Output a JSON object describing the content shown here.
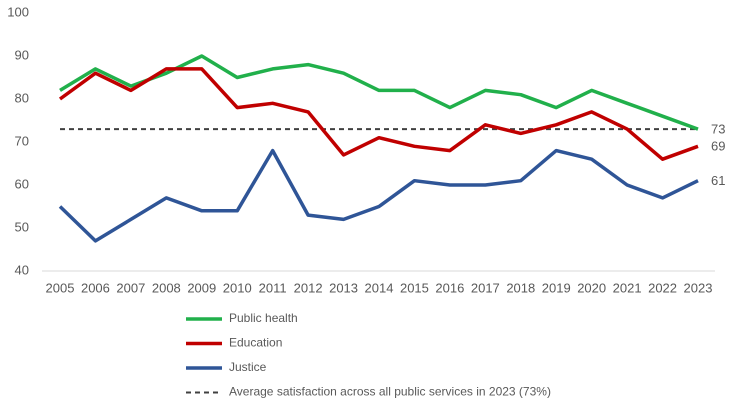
{
  "chart_data": {
    "type": "line",
    "x": [
      2005,
      2006,
      2007,
      2008,
      2009,
      2010,
      2011,
      2012,
      2013,
      2014,
      2015,
      2016,
      2017,
      2018,
      2019,
      2020,
      2021,
      2022,
      2023
    ],
    "xlim": [
      2005,
      2023
    ],
    "xticks": [
      2005,
      2006,
      2007,
      2008,
      2009,
      2010,
      2011,
      2012,
      2013,
      2014,
      2015,
      2016,
      2017,
      2018,
      2019,
      2020,
      2021,
      2022,
      2023
    ],
    "ylim": [
      40,
      100
    ],
    "yticks": [
      40,
      50,
      60,
      70,
      80,
      90,
      100
    ],
    "grid": false,
    "legend": "bottom",
    "series": [
      {
        "name": "Public health",
        "color": "#21b04b",
        "values": [
          82,
          87,
          83,
          86,
          90,
          85,
          87,
          88,
          86,
          82,
          82,
          78,
          82,
          81,
          78,
          82,
          79,
          76,
          73
        ]
      },
      {
        "name": "Education",
        "color": "#c00000",
        "values": [
          80,
          86,
          82,
          87,
          87,
          78,
          79,
          77,
          67,
          71,
          69,
          68,
          74,
          72,
          74,
          77,
          73,
          66,
          69
        ]
      },
      {
        "name": "Justice",
        "color": "#2f5597",
        "values": [
          55,
          47,
          52,
          57,
          54,
          54,
          68,
          53,
          52,
          55,
          61,
          60,
          60,
          61,
          68,
          66,
          60,
          57,
          61
        ]
      }
    ],
    "reference_line": {
      "name": "Average satisfaction across all public services in 2023 (73%)",
      "value": 73,
      "color": "#404040"
    }
  }
}
